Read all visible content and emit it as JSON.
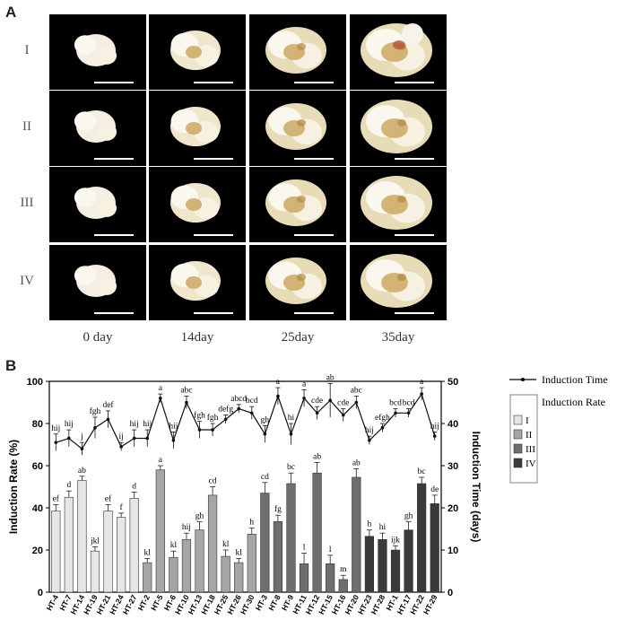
{
  "panel_a": {
    "letter": "A",
    "rows": [
      "I",
      "II",
      "III",
      "IV"
    ],
    "columns": [
      "0 day",
      "14day",
      "25day",
      "35day"
    ]
  },
  "panel_b": {
    "letter": "B"
  },
  "chart_data": {
    "type": "bar",
    "title": "",
    "xlabel": "",
    "ylabel": "Induction Rate (%)",
    "y2label": "Induction Time (days)",
    "ylim": [
      0,
      100
    ],
    "y2lim": [
      0,
      50
    ],
    "yticks": [
      0,
      20,
      40,
      60,
      80,
      100
    ],
    "y2ticks": [
      0,
      10,
      20,
      30,
      40,
      50
    ],
    "categories": [
      "HT-4",
      "HT-7",
      "HT-14",
      "HT-19",
      "HT-21",
      "HT-24",
      "HT-27",
      "HT-2",
      "HT-5",
      "HT-6",
      "HT-10",
      "HT-13",
      "HT-18",
      "HT-25",
      "HT-26",
      "HT-30",
      "HT-3",
      "HT-8",
      "HT-9",
      "HT-11",
      "HT-12",
      "HT-15",
      "HT-16",
      "HT-20",
      "HT-23",
      "HT-28",
      "HT-1",
      "HT-17",
      "HT-22",
      "HT-29"
    ],
    "groups": [
      "I",
      "I",
      "I",
      "I",
      "I",
      "I",
      "I",
      "II",
      "II",
      "II",
      "II",
      "II",
      "II",
      "II",
      "II",
      "II",
      "III",
      "III",
      "III",
      "III",
      "III",
      "III",
      "III",
      "III",
      "IV",
      "IV",
      "IV",
      "IV",
      "IV",
      "IV"
    ],
    "group_colors": {
      "I": "#e6e6e6",
      "II": "#a6a6a6",
      "III": "#6e6e6e",
      "IV": "#3a3a3a"
    },
    "legend": {
      "line_label": "Induction Time",
      "bar_label": "Induction Rate",
      "groups": [
        "I",
        "II",
        "III",
        "IV"
      ]
    },
    "series": [
      {
        "name": "Induction Rate",
        "axis": "left",
        "values": [
          38.5,
          45,
          53,
          19.5,
          38.5,
          35.5,
          44.5,
          14,
          58,
          16.5,
          25,
          29.5,
          46,
          17,
          14,
          27.5,
          47,
          33.5,
          51.5,
          13.5,
          56.5,
          13.5,
          6,
          54.5,
          26.5,
          25,
          20,
          29.5,
          51.5,
          42
        ],
        "errors": [
          3,
          3,
          2,
          2,
          3,
          2,
          3,
          2,
          2,
          3,
          3,
          4,
          4,
          3,
          2,
          3,
          5,
          3,
          5,
          5,
          5,
          4,
          2,
          4,
          3,
          3,
          2,
          4,
          3,
          4
        ],
        "labels": [
          "ef",
          "d",
          "ab",
          "jkl",
          "ef",
          "f",
          "d",
          "kl",
          "a",
          "kl",
          "hij",
          "gh",
          "cd",
          "kl",
          "kl",
          "h",
          "cd",
          "fg",
          "bc",
          "l",
          "ab",
          "l",
          "m",
          "ab",
          "h",
          "hi",
          "ijk",
          "gh",
          "bc",
          "de"
        ]
      },
      {
        "name": "Induction Time",
        "axis": "right",
        "values": [
          35.5,
          36.5,
          34,
          39,
          41,
          34.5,
          36.5,
          36.5,
          46,
          36,
          45,
          38.5,
          38.5,
          41,
          43.5,
          42.5,
          37.5,
          46.5,
          37.5,
          46,
          42.5,
          45.5,
          42,
          45,
          36,
          39,
          42.5,
          42.5,
          47,
          37
        ],
        "errors": [
          2,
          2,
          1.5,
          2.5,
          2,
          1,
          2,
          2,
          1,
          2,
          1.5,
          2,
          1.5,
          1,
          1,
          1.5,
          2,
          2,
          2.5,
          2,
          1.5,
          4,
          1.5,
          1.5,
          1,
          1,
          1,
          1,
          1.5,
          1
        ],
        "labels": [
          "hij",
          "hij",
          "j",
          "fgh",
          "def",
          "ij",
          "hij",
          "hij",
          "a",
          "hij",
          "abc",
          "fgh",
          "fgh",
          "defg",
          "abcd",
          "bcd",
          "gh",
          "a",
          "hi",
          "a",
          "cde",
          "ab",
          "cde",
          "abc",
          "hij",
          "efgh",
          "bcd",
          "bcd",
          "a",
          "hij"
        ]
      }
    ]
  }
}
